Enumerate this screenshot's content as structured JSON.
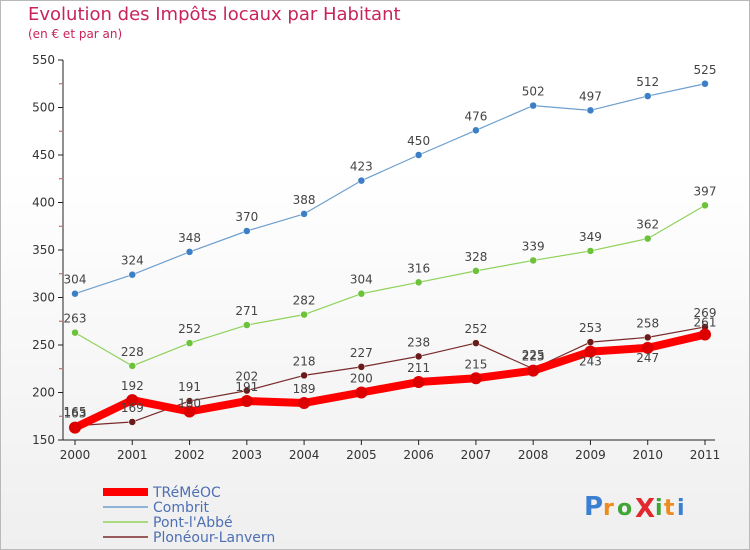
{
  "header": {
    "title": "Evolution des Impôts locaux par Habitant",
    "subtitle": "(en € et par an)"
  },
  "logo": {
    "text": "ProXiti",
    "colors": [
      "#3b7fd1",
      "#f08a1c",
      "#3fa535",
      "#e0282e"
    ]
  },
  "chart_data": {
    "type": "line",
    "title": "Evolution des Impôts locaux par Habitant",
    "subtitle": "(en € et par an)",
    "x": [
      "2000",
      "2001",
      "2002",
      "2003",
      "2004",
      "2005",
      "2006",
      "2007",
      "2008",
      "2009",
      "2010",
      "2011"
    ],
    "ylim": [
      150,
      550
    ],
    "yticks": [
      150,
      200,
      250,
      300,
      350,
      400,
      450,
      500,
      550
    ],
    "grid": false,
    "legend_position": "bottom-left",
    "series": [
      {
        "name": "TRéMéOC",
        "color": "#ff0000",
        "marker_color": "#dd0000",
        "width": 8,
        "values": [
          163,
          192,
          180,
          191,
          189,
          200,
          211,
          215,
          223,
          243,
          247,
          261
        ],
        "label_offset": [
          0,
          -10,
          -4,
          -10,
          -10,
          -10,
          -10,
          -10,
          -10,
          6,
          6,
          -8
        ]
      },
      {
        "name": "Combrit",
        "color": "#6d9fcf",
        "marker_color": "#3d7fc6",
        "width": 1.2,
        "values": [
          304,
          324,
          348,
          370,
          388,
          423,
          450,
          476,
          502,
          497,
          512,
          525
        ],
        "label_offset": [
          -10,
          -10,
          -10,
          -10,
          -10,
          -10,
          -10,
          -10,
          -10,
          -10,
          -10,
          -10
        ]
      },
      {
        "name": "Pont-l'Abbé",
        "color": "#8fd25a",
        "marker_color": "#6cc23a",
        "width": 1.2,
        "values": [
          263,
          228,
          252,
          271,
          282,
          304,
          316,
          328,
          339,
          349,
          362,
          397
        ],
        "label_offset": [
          -10,
          -10,
          -10,
          -10,
          -10,
          -10,
          -10,
          -10,
          -10,
          -10,
          -10,
          -10
        ]
      },
      {
        "name": "Plonéour-Lanvern",
        "color": "#7a2a2a",
        "marker_color": "#6b1a1a",
        "width": 1.2,
        "values": [
          165,
          169,
          191,
          202,
          218,
          227,
          238,
          252,
          225,
          253,
          258,
          269
        ],
        "label_offset": [
          -10,
          -10,
          -10,
          -10,
          -10,
          -10,
          -10,
          -10,
          -10,
          -10,
          -10,
          -10
        ]
      }
    ]
  }
}
